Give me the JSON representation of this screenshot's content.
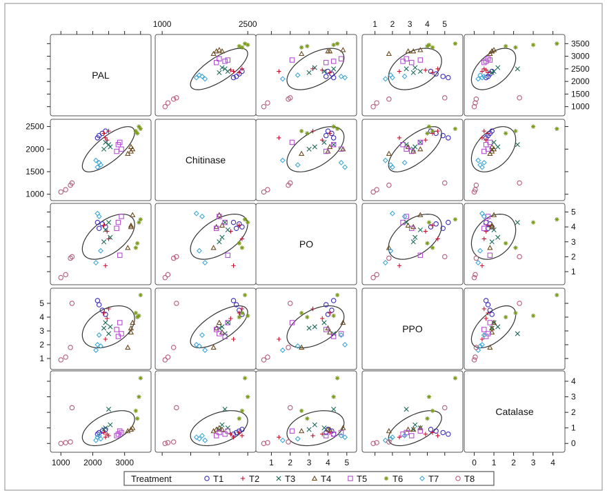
{
  "chart_data": {
    "type": "scatter",
    "subtype": "scatterplot-matrix",
    "title": "",
    "variables": [
      {
        "name": "PAL",
        "range": [
          800,
          3700
        ],
        "ticks": [
          1000,
          1500,
          2000,
          2500,
          3000,
          3500
        ],
        "tick_labels": [
          "1000",
          "1500",
          "2000",
          "2500",
          "3000",
          "3500"
        ],
        "axis_ticks": [
          1000,
          2000,
          3000
        ],
        "axis_tick_labels": [
          "1000",
          "2000",
          "3000"
        ]
      },
      {
        "name": "Chitinase",
        "range": [
          950,
          2570
        ],
        "ticks": [
          1000,
          1500,
          2000,
          2500
        ],
        "tick_labels": [
          "1000",
          "1500",
          "2000",
          "2500"
        ],
        "axis_ticks": [
          1000,
          2500
        ],
        "axis_tick_labels": [
          "1000",
          "2500"
        ]
      },
      {
        "name": "PO",
        "range": [
          0.4,
          5.3
        ],
        "ticks": [
          1,
          2,
          3,
          4,
          5
        ],
        "tick_labels": [
          "1",
          "2",
          "3",
          "4",
          "5"
        ]
      },
      {
        "name": "PPO",
        "range": [
          0.5,
          5.8
        ],
        "ticks": [
          1,
          2,
          3,
          4,
          5
        ],
        "tick_labels": [
          "1",
          "2",
          "3",
          "4",
          "5"
        ]
      },
      {
        "name": "Catalase",
        "range": [
          -0.3,
          4.4
        ],
        "ticks": [
          0,
          1,
          2,
          3,
          4
        ],
        "tick_labels": [
          "0",
          "1",
          "2",
          "3",
          "4"
        ]
      }
    ],
    "legend": {
      "title": "Treatment",
      "position": "bottom",
      "entries": [
        {
          "label": "T1",
          "marker": "circle",
          "color": "#3a2bb8"
        },
        {
          "label": "T2",
          "marker": "plus",
          "color": "#c8102e"
        },
        {
          "label": "T3",
          "marker": "x",
          "color": "#1f6b5a"
        },
        {
          "label": "T4",
          "marker": "triangle",
          "color": "#6b4a1e"
        },
        {
          "label": "T5",
          "marker": "square",
          "color": "#b34fd1"
        },
        {
          "label": "T6",
          "marker": "star",
          "color": "#7a9a1a"
        },
        {
          "label": "T7",
          "marker": "diamond",
          "color": "#3fa7d6"
        },
        {
          "label": "T8",
          "marker": "circle",
          "color": "#b65a7a"
        }
      ]
    },
    "groups": [
      {
        "name": "T1",
        "points": [
          [
            2300,
            2350,
            4.2,
            4.5,
            0.8
          ],
          [
            2200,
            2300,
            3.9,
            4.9,
            0.7
          ],
          [
            2150,
            2250,
            4.3,
            5.2,
            0.6
          ],
          [
            2400,
            2400,
            4.0,
            4.2,
            0.9
          ]
        ]
      },
      {
        "name": "T2",
        "points": [
          [
            2450,
            2200,
            3.7,
            3.9,
            0.6
          ],
          [
            2350,
            2350,
            4.1,
            4.3,
            0.7
          ],
          [
            2500,
            2400,
            3.2,
            4.6,
            0.5
          ],
          [
            2400,
            2250,
            1.4,
            2.4,
            0.4
          ]
        ]
      },
      {
        "name": "T3",
        "points": [
          [
            2550,
            2050,
            3.3,
            3.3,
            1.2
          ],
          [
            2500,
            2100,
            4.3,
            2.8,
            2.2
          ],
          [
            2350,
            2000,
            3.0,
            3.2,
            0.9
          ],
          [
            2400,
            2150,
            3.8,
            3.6,
            1.0
          ]
        ]
      },
      {
        "name": "T4",
        "points": [
          [
            3200,
            1950,
            4.0,
            3.2,
            0.9
          ],
          [
            3250,
            2000,
            4.8,
            3.6,
            1.0
          ],
          [
            3100,
            1900,
            2.6,
            1.8,
            0.8
          ],
          [
            3200,
            2050,
            4.1,
            2.9,
            0.9
          ]
        ]
      },
      {
        "name": "T5",
        "points": [
          [
            2800,
            2100,
            4.3,
            2.6,
            0.6
          ],
          [
            2900,
            2000,
            4.7,
            2.8,
            0.7
          ],
          [
            2750,
            1950,
            3.9,
            3.1,
            0.5
          ],
          [
            2850,
            2150,
            2.1,
            3.6,
            0.8
          ]
        ]
      },
      {
        "name": "T6",
        "points": [
          [
            3500,
            2450,
            4.5,
            5.6,
            4.2
          ],
          [
            3450,
            2500,
            4.3,
            4.1,
            3.0
          ],
          [
            3350,
            2400,
            2.6,
            4.3,
            2.1
          ],
          [
            3400,
            2350,
            2.9,
            4.0,
            1.6
          ]
        ]
      },
      {
        "name": "T7",
        "points": [
          [
            2150,
            1600,
            4.9,
            2.0,
            0.4
          ],
          [
            2200,
            1700,
            4.7,
            2.7,
            0.5
          ],
          [
            2250,
            1650,
            2.4,
            1.9,
            0.3
          ],
          [
            2100,
            1750,
            1.6,
            1.6,
            0.2
          ]
        ]
      },
      {
        "name": "T8",
        "points": [
          [
            1000,
            1050,
            0.6,
            0.9,
            0.0
          ],
          [
            1150,
            1100,
            0.8,
            1.1,
            0.05
          ],
          [
            1300,
            1200,
            1.9,
            1.8,
            0.1
          ],
          [
            1350,
            1250,
            2.0,
            5.0,
            2.3
          ]
        ]
      }
    ]
  }
}
